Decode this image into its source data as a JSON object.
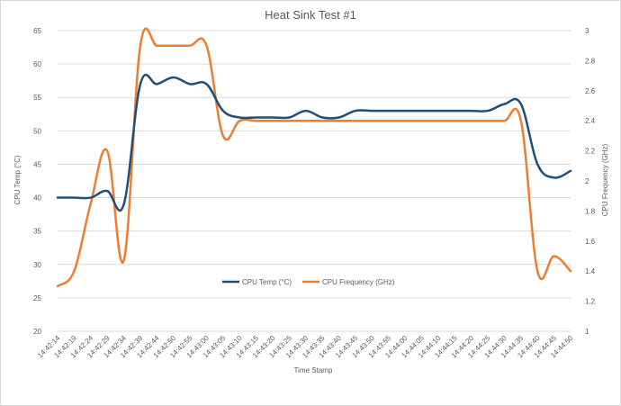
{
  "chart_data": {
    "type": "line",
    "title": "Heat Sink Test #1",
    "xlabel": "Time Stamp",
    "ylabel_left": "CPU Temp (°C)",
    "ylabel_right": "CPU Frequency (GHz)",
    "ylim_left": [
      20,
      65
    ],
    "yticks_left": [
      "20",
      "25",
      "30",
      "35",
      "40",
      "45",
      "50",
      "55",
      "60",
      "65"
    ],
    "ylim_right": [
      1,
      3
    ],
    "yticks_right": [
      "1",
      "1.2",
      "1.4",
      "1.6",
      "1.8",
      "2",
      "2.2",
      "2.4",
      "2.6",
      "2.8",
      "3"
    ],
    "grid": "horizontal",
    "legend_position": "inside-bottom-center",
    "categories": [
      "14:42:14",
      "14:42:19",
      "14:42:24",
      "14:42:29",
      "14:42:34",
      "14:42:39",
      "14:42:44",
      "14:42:50",
      "14:42:55",
      "14:43:00",
      "14:43:05",
      "14:43:10",
      "14:43:15",
      "14:43:20",
      "14:43:25",
      "14:43:30",
      "14:43:35",
      "14:43:40",
      "14:43:45",
      "14:43:50",
      "14:43:55",
      "14:44:00",
      "14:44:05",
      "14:44:10",
      "14:44:15",
      "14:44:20",
      "14:44:25",
      "14:44:30",
      "14:44:35",
      "14:44:40",
      "14:44:45",
      "14:44:50"
    ],
    "series": [
      {
        "name": "CPU Temp (°C)",
        "axis": "left",
        "color": "#1f4e79",
        "values": [
          40,
          40,
          40,
          41,
          39,
          57,
          57,
          58,
          57,
          57,
          53,
          52,
          52,
          52,
          52,
          53,
          52,
          52,
          53,
          53,
          53,
          53,
          53,
          53,
          53,
          53,
          53,
          54,
          54,
          45,
          43,
          44
        ]
      },
      {
        "name": "CPU Frequency (GHz)",
        "axis": "right",
        "color": "#ed7d31",
        "values": [
          1.3,
          1.4,
          1.85,
          2.2,
          1.47,
          2.9,
          2.9,
          2.9,
          2.9,
          2.9,
          2.3,
          2.4,
          2.4,
          2.4,
          2.4,
          2.4,
          2.4,
          2.4,
          2.4,
          2.4,
          2.4,
          2.4,
          2.4,
          2.4,
          2.4,
          2.4,
          2.4,
          2.4,
          2.4,
          1.4,
          1.5,
          1.4
        ]
      }
    ]
  }
}
